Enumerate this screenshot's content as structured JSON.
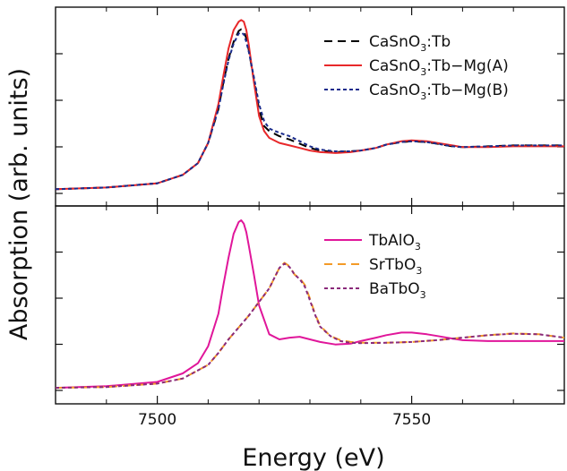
{
  "chart_data": [
    {
      "type": "line",
      "panel": "top",
      "xlim": [
        7480,
        7580
      ],
      "xlabel": "Energy (eV)",
      "ylabel": "Absorption (arb. units)",
      "grid": false,
      "legend_placement": "top-right",
      "series": [
        {
          "name": "CaSnO3:Tb",
          "legend": {
            "pre": "CaSnO",
            "sub": "3",
            "post": ":Tb"
          },
          "color": "#000000",
          "dash": "9,6",
          "x": [
            7480,
            7490,
            7500,
            7505,
            7508,
            7510,
            7512,
            7513,
            7514,
            7515,
            7516,
            7516.5,
            7517,
            7517.5,
            7518,
            7519,
            7520,
            7521,
            7522,
            7524,
            7526,
            7528,
            7530,
            7532,
            7535,
            7538,
            7540,
            7543,
            7545,
            7548,
            7550,
            7553,
            7555,
            7558,
            7560,
            7565,
            7570,
            7575,
            7580
          ],
          "y": [
            0.025,
            0.035,
            0.06,
            0.11,
            0.18,
            0.3,
            0.5,
            0.66,
            0.8,
            0.9,
            0.965,
            0.975,
            0.965,
            0.92,
            0.85,
            0.67,
            0.5,
            0.4,
            0.37,
            0.34,
            0.32,
            0.295,
            0.27,
            0.255,
            0.245,
            0.25,
            0.255,
            0.27,
            0.29,
            0.305,
            0.31,
            0.305,
            0.295,
            0.28,
            0.275,
            0.28,
            0.285,
            0.285,
            0.285
          ]
        },
        {
          "name": "CaSnO3:Tb-Mg(A)",
          "legend": {
            "pre": "CaSnO",
            "sub": "3",
            "post": ":Tb−Mg(A)"
          },
          "color": "#e8282a",
          "dash": "",
          "x": [
            7480,
            7490,
            7500,
            7505,
            7508,
            7510,
            7512,
            7513,
            7514,
            7515,
            7516,
            7516.5,
            7517,
            7517.5,
            7518,
            7519,
            7520,
            7521,
            7522,
            7524,
            7526,
            7528,
            7530,
            7532,
            7535,
            7538,
            7540,
            7543,
            7545,
            7548,
            7550,
            7553,
            7555,
            7558,
            7560,
            7565,
            7570,
            7575,
            7580
          ],
          "y": [
            0.025,
            0.035,
            0.06,
            0.11,
            0.18,
            0.3,
            0.53,
            0.7,
            0.86,
            0.97,
            1.02,
            1.03,
            1.02,
            0.97,
            0.88,
            0.66,
            0.46,
            0.37,
            0.33,
            0.3,
            0.285,
            0.27,
            0.255,
            0.245,
            0.24,
            0.245,
            0.255,
            0.27,
            0.29,
            0.31,
            0.315,
            0.31,
            0.3,
            0.285,
            0.275,
            0.275,
            0.28,
            0.28,
            0.28
          ]
        },
        {
          "name": "CaSnO3:Tb-Mg(B)",
          "legend": {
            "pre": "CaSnO",
            "sub": "3",
            "post": ":Tb−Mg(B)"
          },
          "color": "#1a2b8c",
          "dash": "4,3",
          "x": [
            7480,
            7490,
            7500,
            7505,
            7508,
            7510,
            7512,
            7513,
            7514,
            7515,
            7516,
            7516.5,
            7517,
            7517.5,
            7518,
            7519,
            7520,
            7521,
            7522,
            7524,
            7526,
            7528,
            7530,
            7532,
            7535,
            7538,
            7540,
            7543,
            7545,
            7548,
            7550,
            7553,
            7555,
            7558,
            7560,
            7565,
            7570,
            7575,
            7580
          ],
          "y": [
            0.025,
            0.035,
            0.06,
            0.11,
            0.18,
            0.3,
            0.5,
            0.65,
            0.79,
            0.89,
            0.95,
            0.955,
            0.945,
            0.9,
            0.84,
            0.69,
            0.53,
            0.43,
            0.385,
            0.36,
            0.34,
            0.31,
            0.28,
            0.26,
            0.25,
            0.25,
            0.255,
            0.27,
            0.29,
            0.305,
            0.31,
            0.305,
            0.295,
            0.28,
            0.275,
            0.28,
            0.285,
            0.285,
            0.285
          ]
        }
      ]
    },
    {
      "type": "line",
      "panel": "bottom",
      "xlim": [
        7480,
        7580
      ],
      "xlabel": "Energy (eV)",
      "ylabel": "Absorption (arb. units)",
      "grid": false,
      "legend_placement": "top-right",
      "series": [
        {
          "name": "TbAlO3",
          "legend": {
            "pre": "TbAlO",
            "sub": "3",
            "post": ""
          },
          "color": "#e0169a",
          "dash": "",
          "x": [
            7480,
            7490,
            7500,
            7505,
            7508,
            7510,
            7512,
            7513,
            7514,
            7515,
            7516,
            7516.5,
            7517,
            7517.5,
            7518,
            7519,
            7520,
            7522,
            7524,
            7526,
            7528,
            7530,
            7532,
            7535,
            7538,
            7540,
            7543,
            7545,
            7548,
            7550,
            7553,
            7555,
            7558,
            7560,
            7565,
            7570,
            7575,
            7580
          ],
          "y": [
            0.015,
            0.025,
            0.05,
            0.1,
            0.16,
            0.26,
            0.45,
            0.62,
            0.78,
            0.92,
            0.99,
            1.0,
            0.98,
            0.93,
            0.85,
            0.68,
            0.5,
            0.33,
            0.3,
            0.31,
            0.315,
            0.3,
            0.285,
            0.27,
            0.275,
            0.29,
            0.31,
            0.325,
            0.34,
            0.34,
            0.33,
            0.32,
            0.305,
            0.295,
            0.29,
            0.29,
            0.29,
            0.29
          ]
        },
        {
          "name": "SrTbO3",
          "legend": {
            "pre": "SrTbO",
            "sub": "3",
            "post": ""
          },
          "color": "#f39a27",
          "dash": "9,6",
          "x": [
            7480,
            7490,
            7500,
            7505,
            7510,
            7512,
            7514,
            7516,
            7518,
            7520,
            7522,
            7523,
            7524,
            7525,
            7526,
            7527,
            7528,
            7529,
            7530,
            7531,
            7532,
            7534,
            7536,
            7538,
            7540,
            7545,
            7550,
            7555,
            7560,
            7565,
            7570,
            7575,
            7580
          ],
          "y": [
            0.015,
            0.02,
            0.04,
            0.07,
            0.15,
            0.22,
            0.3,
            0.37,
            0.44,
            0.52,
            0.6,
            0.66,
            0.72,
            0.75,
            0.73,
            0.68,
            0.66,
            0.62,
            0.54,
            0.45,
            0.38,
            0.32,
            0.295,
            0.285,
            0.28,
            0.28,
            0.285,
            0.295,
            0.31,
            0.325,
            0.335,
            0.33,
            0.31
          ]
        },
        {
          "name": "BaTbO3",
          "legend": {
            "pre": "BaTbO",
            "sub": "3",
            "post": ""
          },
          "color": "#8a2a7a",
          "dash": "4,3",
          "x": [
            7480,
            7490,
            7500,
            7505,
            7510,
            7512,
            7514,
            7516,
            7518,
            7520,
            7522,
            7523,
            7524,
            7525,
            7526,
            7527,
            7528,
            7529,
            7530,
            7531,
            7532,
            7534,
            7536,
            7538,
            7540,
            7545,
            7550,
            7555,
            7560,
            7565,
            7570,
            7575,
            7580
          ],
          "y": [
            0.015,
            0.02,
            0.04,
            0.07,
            0.15,
            0.22,
            0.3,
            0.37,
            0.44,
            0.52,
            0.6,
            0.66,
            0.72,
            0.745,
            0.725,
            0.68,
            0.655,
            0.61,
            0.53,
            0.445,
            0.375,
            0.32,
            0.29,
            0.28,
            0.278,
            0.28,
            0.285,
            0.295,
            0.31,
            0.325,
            0.333,
            0.33,
            0.31
          ]
        }
      ]
    }
  ],
  "axes": {
    "x_ticks_major": [
      7500,
      7550
    ],
    "x_tick_labels": [
      "7500",
      "7550"
    ],
    "x_ticks_minor": [
      7480,
      7490,
      7510,
      7520,
      7530,
      7540,
      7560,
      7570,
      7580
    ],
    "xlabel": "Energy (eV)",
    "ylabel": "Absorption (arb. units)"
  }
}
